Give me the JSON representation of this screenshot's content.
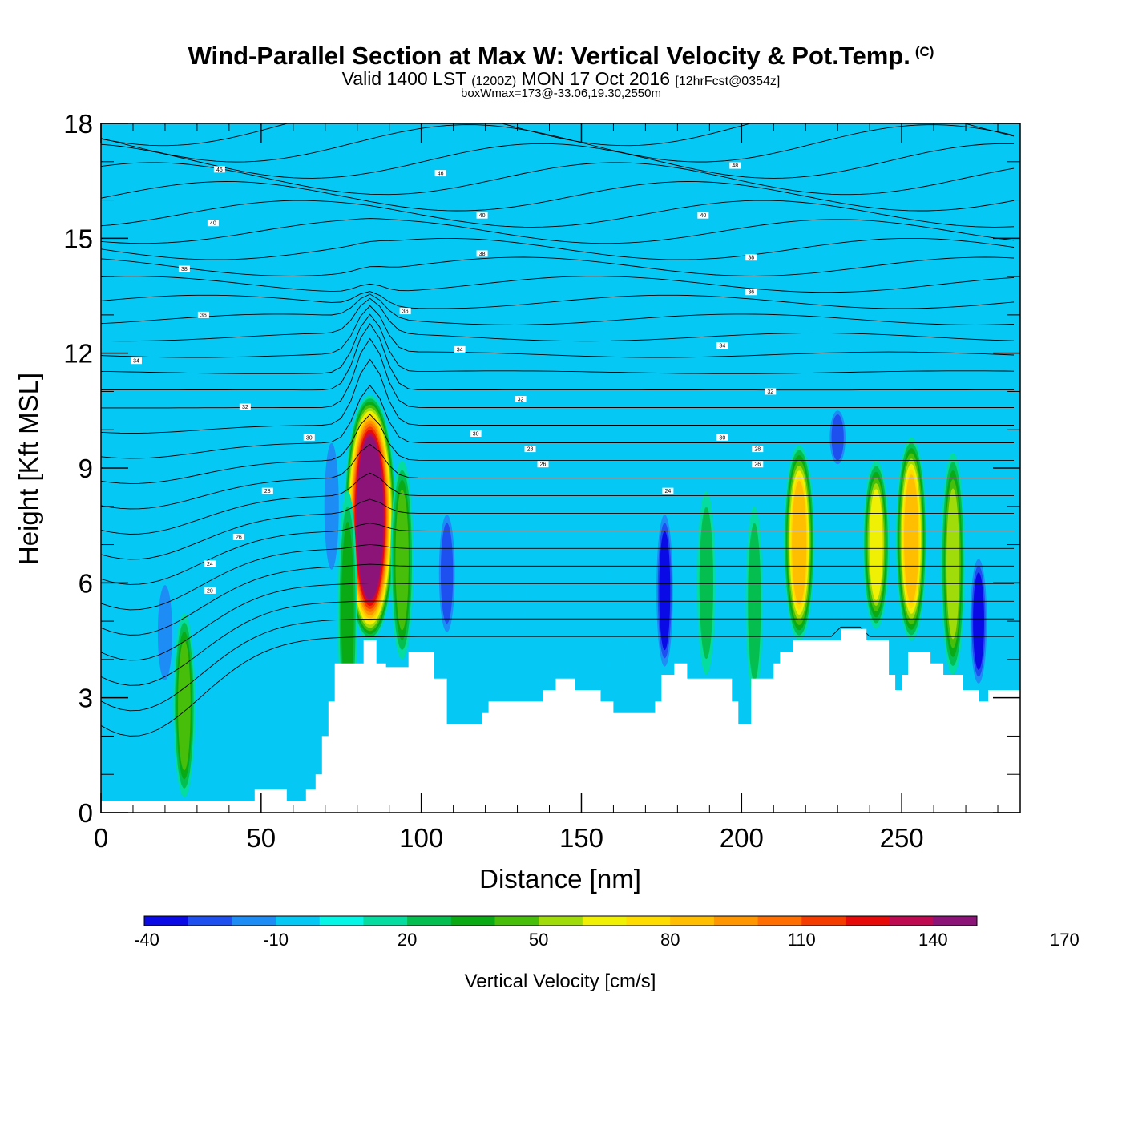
{
  "header": {
    "title_main": "Wind-Parallel Section at Max W: Vertical Velocity & Pot.Temp.",
    "title_mark": "(C)",
    "valid_a": "Valid 1400 LST",
    "valid_utc": "(1200Z)",
    "valid_b": "MON 17 Oct 2016",
    "forecast": "[12hrFcst@0354z]",
    "boxwmax": "boxWmax=173@-33.06,19.30,2550m"
  },
  "colors": {
    "colorbar": [
      "#0a0ae6",
      "#1e50f0",
      "#1e8cf5",
      "#05c8f5",
      "#05f5e6",
      "#05dca0",
      "#05be50",
      "#0aaa14",
      "#46be0a",
      "#a0dc0a",
      "#f0f005",
      "#ffdc00",
      "#ffbe00",
      "#ff9600",
      "#ff6e00",
      "#f53c00",
      "#e60a0a",
      "#be0a50",
      "#8c1478"
    ],
    "background_field": "#05c8f5",
    "terrain": "#ffffff"
  },
  "chart_data": {
    "type": "heatmap",
    "xlabel": "Distance [nm]",
    "ylabel": "Height [Kft MSL]",
    "xlim": [
      0,
      287
    ],
    "ylim": [
      0,
      18
    ],
    "xticks": [
      0,
      50,
      100,
      150,
      200,
      250
    ],
    "yticks": [
      0,
      3,
      6,
      9,
      12,
      15,
      18
    ],
    "colorbar": {
      "label": "Vertical Velocity [cm/s]",
      "levels": [
        -40,
        -30,
        -20,
        -10,
        0,
        10,
        20,
        30,
        40,
        50,
        60,
        70,
        80,
        90,
        100,
        110,
        120,
        130,
        140,
        150
      ],
      "tick_labels": [
        "-40",
        "-10",
        "20",
        "50",
        "80",
        "110",
        "140",
        "170"
      ],
      "tick_values": [
        -40,
        -10,
        20,
        50,
        80,
        110,
        140,
        170
      ]
    },
    "vertical_velocity_cells": [
      {
        "x": 84,
        "y_bottom": 4.5,
        "y_top": 10.9,
        "w_max": 173
      },
      {
        "x": 253,
        "y_bottom": 4.5,
        "y_top": 9.8,
        "w_max": 80
      },
      {
        "x": 218,
        "y_bottom": 4.5,
        "y_top": 9.6,
        "w_max": 80
      },
      {
        "x": 242,
        "y_bottom": 4.8,
        "y_top": 9.2,
        "w_max": 60
      },
      {
        "x": 266,
        "y_bottom": 3.6,
        "y_top": 9.4,
        "w_max": 50
      },
      {
        "x": 94,
        "y_bottom": 4.0,
        "y_top": 9.2,
        "w_max": 45
      },
      {
        "x": 26,
        "y_bottom": 0.4,
        "y_top": 5.2,
        "w_max": 40
      },
      {
        "x": 77,
        "y_bottom": 2.0,
        "y_top": 8.4,
        "w_max": 30
      },
      {
        "x": 189,
        "y_bottom": 3.6,
        "y_top": 8.4,
        "w_max": 25
      },
      {
        "x": 204,
        "y_bottom": 3.0,
        "y_top": 8.0,
        "w_max": 20
      },
      {
        "x": 176,
        "y_bottom": 3.6,
        "y_top": 8.0,
        "w_max": -40
      },
      {
        "x": 108,
        "y_bottom": 4.5,
        "y_top": 8.0,
        "w_max": -30
      },
      {
        "x": 274,
        "y_bottom": 3.2,
        "y_top": 6.8,
        "w_max": -40
      },
      {
        "x": 230,
        "y_bottom": 9.0,
        "y_top": 10.6,
        "w_max": -30
      },
      {
        "x": 72,
        "y_bottom": 6.0,
        "y_top": 10.0,
        "w_max": -20
      },
      {
        "x": 20,
        "y_bottom": 3.2,
        "y_top": 6.2,
        "w_max": -20
      },
      {
        "x": 130,
        "y_bottom": 4.5,
        "y_top": 8.6,
        "w_max": -10
      },
      {
        "x": 161,
        "y_bottom": 3.2,
        "y_top": 7.4,
        "w_max": -10
      }
    ],
    "terrain_kft": [
      [
        0,
        0.3
      ],
      [
        48,
        0.3
      ],
      [
        48,
        0.6
      ],
      [
        58,
        0.6
      ],
      [
        58,
        0.3
      ],
      [
        64,
        0.3
      ],
      [
        64,
        0.6
      ],
      [
        67,
        0.6
      ],
      [
        67,
        1.0
      ],
      [
        69,
        1.0
      ],
      [
        69,
        2.0
      ],
      [
        71,
        2.0
      ],
      [
        71,
        2.9
      ],
      [
        73,
        2.9
      ],
      [
        73,
        3.9
      ],
      [
        82,
        3.9
      ],
      [
        82,
        4.5
      ],
      [
        86,
        4.5
      ],
      [
        86,
        3.9
      ],
      [
        89,
        3.9
      ],
      [
        89,
        3.8
      ],
      [
        96,
        3.8
      ],
      [
        96,
        4.2
      ],
      [
        104,
        4.2
      ],
      [
        104,
        3.5
      ],
      [
        108,
        3.5
      ],
      [
        108,
        2.3
      ],
      [
        119,
        2.3
      ],
      [
        119,
        2.6
      ],
      [
        121,
        2.6
      ],
      [
        121,
        2.9
      ],
      [
        138,
        2.9
      ],
      [
        138,
        3.2
      ],
      [
        142,
        3.2
      ],
      [
        142,
        3.5
      ],
      [
        148,
        3.5
      ],
      [
        148,
        3.2
      ],
      [
        156,
        3.2
      ],
      [
        156,
        2.9
      ],
      [
        160,
        2.9
      ],
      [
        160,
        2.6
      ],
      [
        173,
        2.6
      ],
      [
        173,
        2.9
      ],
      [
        175,
        2.9
      ],
      [
        175,
        3.6
      ],
      [
        179,
        3.6
      ],
      [
        179,
        3.9
      ],
      [
        183,
        3.9
      ],
      [
        183,
        3.5
      ],
      [
        197,
        3.5
      ],
      [
        197,
        2.9
      ],
      [
        199,
        2.9
      ],
      [
        199,
        2.3
      ],
      [
        203,
        2.3
      ],
      [
        203,
        3.5
      ],
      [
        210,
        3.5
      ],
      [
        210,
        3.9
      ],
      [
        212,
        3.9
      ],
      [
        212,
        4.2
      ],
      [
        216,
        4.2
      ],
      [
        216,
        4.5
      ],
      [
        231,
        4.5
      ],
      [
        231,
        4.8
      ],
      [
        239,
        4.8
      ],
      [
        239,
        4.5
      ],
      [
        246,
        4.5
      ],
      [
        246,
        3.6
      ],
      [
        248,
        3.6
      ],
      [
        248,
        3.2
      ],
      [
        250,
        3.2
      ],
      [
        250,
        3.6
      ],
      [
        252,
        3.6
      ],
      [
        252,
        4.2
      ],
      [
        259,
        4.2
      ],
      [
        259,
        3.9
      ],
      [
        263,
        3.9
      ],
      [
        263,
        3.6
      ],
      [
        269,
        3.6
      ],
      [
        269,
        3.2
      ],
      [
        274,
        3.2
      ],
      [
        274,
        2.9
      ],
      [
        277,
        2.9
      ],
      [
        277,
        3.2
      ],
      [
        287,
        3.2
      ],
      [
        287,
        0
      ],
      [
        0,
        0
      ]
    ],
    "theta_label_positions": [
      {
        "label": "20",
        "x": 34,
        "y": 5.8
      },
      {
        "label": "24",
        "x": 34,
        "y": 6.5
      },
      {
        "label": "26",
        "x": 43,
        "y": 7.2
      },
      {
        "label": "28",
        "x": 52,
        "y": 8.4
      },
      {
        "label": "30",
        "x": 65,
        "y": 9.8
      },
      {
        "label": "32",
        "x": 45,
        "y": 10.6
      },
      {
        "label": "34",
        "x": 11,
        "y": 11.8
      },
      {
        "label": "36",
        "x": 32,
        "y": 13.0
      },
      {
        "label": "38",
        "x": 26,
        "y": 14.2
      },
      {
        "label": "40",
        "x": 35,
        "y": 15.4
      },
      {
        "label": "46",
        "x": 37,
        "y": 16.8
      },
      {
        "label": "24",
        "x": 177,
        "y": 8.4
      },
      {
        "label": "26",
        "x": 138,
        "y": 9.1
      },
      {
        "label": "28",
        "x": 134,
        "y": 9.5
      },
      {
        "label": "30",
        "x": 117,
        "y": 9.9
      },
      {
        "label": "32",
        "x": 131,
        "y": 10.8
      },
      {
        "label": "34",
        "x": 112,
        "y": 12.1
      },
      {
        "label": "36",
        "x": 95,
        "y": 13.1
      },
      {
        "label": "38",
        "x": 119,
        "y": 14.6
      },
      {
        "label": "40",
        "x": 119,
        "y": 15.6
      },
      {
        "label": "46",
        "x": 106,
        "y": 16.7
      },
      {
        "label": "26",
        "x": 205,
        "y": 9.1
      },
      {
        "label": "28",
        "x": 205,
        "y": 9.5
      },
      {
        "label": "30",
        "x": 194,
        "y": 9.8
      },
      {
        "label": "32",
        "x": 209,
        "y": 11.0
      },
      {
        "label": "34",
        "x": 194,
        "y": 12.2
      },
      {
        "label": "36",
        "x": 203,
        "y": 13.6
      },
      {
        "label": "38",
        "x": 203,
        "y": 14.5
      },
      {
        "label": "40",
        "x": 188,
        "y": 15.6
      },
      {
        "label": "48",
        "x": 198,
        "y": 16.9
      }
    ]
  }
}
